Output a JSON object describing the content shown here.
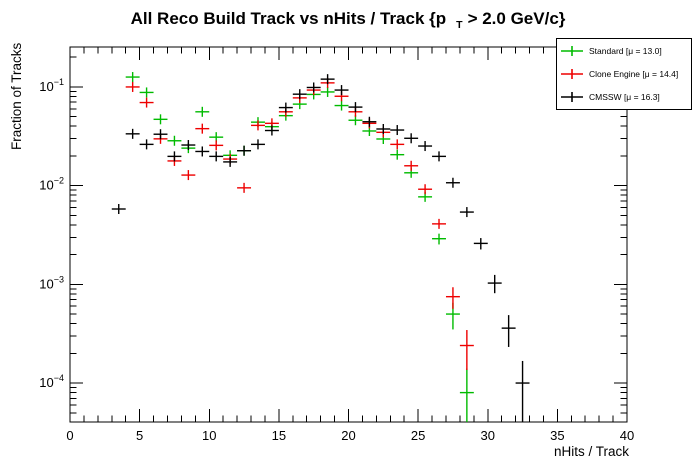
{
  "title": {
    "prefix": "All Reco Build Track vs nHits / Track {p",
    "subscript": "T",
    "suffix": "> 2.0 GeV/c}"
  },
  "chart_data": {
    "type": "scatter",
    "title": "All Reco Build Track vs nHits / Track {p_T > 2.0 GeV/c}",
    "xlabel": "nHits / Track",
    "ylabel": "Fraction of Tracks",
    "xlim": [
      0,
      40
    ],
    "ylim": [
      4.03e-05,
      0.254
    ],
    "yscale": "log",
    "grid": false,
    "legend_position": "top-right",
    "bin_width": 1,
    "x_minor_step": 1,
    "x_major_ticks": [
      0,
      5,
      10,
      15,
      20,
      25,
      30,
      35,
      40
    ],
    "x_tick_labels": [
      "0",
      "5",
      "10",
      "15",
      "20",
      "25",
      "30",
      "35",
      "40"
    ],
    "y_decades": [
      -1,
      -2,
      -3,
      -4
    ],
    "y_tick_labels": [
      "10^-1",
      "10^-2",
      "10^-3",
      "10^-4"
    ],
    "err_events": 22000,
    "series": [
      {
        "name": "Standard",
        "legend_label": "Standard  [μ = 13.0]",
        "mu": 13.0,
        "color": "#00bb00",
        "points": [
          [
            4.5,
            0.126
          ],
          [
            5.5,
            0.088
          ],
          [
            6.5,
            0.047
          ],
          [
            7.5,
            0.0285
          ],
          [
            8.5,
            0.024
          ],
          [
            9.5,
            0.056
          ],
          [
            10.5,
            0.031
          ],
          [
            11.5,
            0.0203
          ],
          [
            12.5,
            0.0226
          ],
          [
            13.5,
            0.044
          ],
          [
            14.5,
            0.0396
          ],
          [
            15.5,
            0.0512
          ],
          [
            16.5,
            0.067
          ],
          [
            17.5,
            0.084
          ],
          [
            18.5,
            0.089
          ],
          [
            19.5,
            0.0648
          ],
          [
            20.5,
            0.046
          ],
          [
            21.5,
            0.0358
          ],
          [
            22.5,
            0.0297
          ],
          [
            23.5,
            0.0206
          ],
          [
            24.5,
            0.0135
          ],
          [
            25.5,
            0.0077
          ],
          [
            26.5,
            0.0029
          ],
          [
            27.5,
            0.0005
          ],
          [
            28.5,
            8e-05
          ]
        ]
      },
      {
        "name": "Clone Engine",
        "legend_label": "Clone Engine  [μ = 14.4]",
        "mu": 14.4,
        "color": "#ee0000",
        "points": [
          [
            4.5,
            0.1
          ],
          [
            5.5,
            0.0695
          ],
          [
            6.5,
            0.0298
          ],
          [
            7.5,
            0.0178
          ],
          [
            8.5,
            0.0128
          ],
          [
            9.5,
            0.0378
          ],
          [
            10.5,
            0.0256
          ],
          [
            11.5,
            0.0186
          ],
          [
            12.5,
            0.0095
          ],
          [
            13.5,
            0.0408
          ],
          [
            14.5,
            0.0428
          ],
          [
            15.5,
            0.056
          ],
          [
            16.5,
            0.0775
          ],
          [
            17.5,
            0.093
          ],
          [
            18.5,
            0.11
          ],
          [
            19.5,
            0.0805
          ],
          [
            20.5,
            0.056
          ],
          [
            21.5,
            0.0428
          ],
          [
            22.5,
            0.0347
          ],
          [
            23.5,
            0.0262
          ],
          [
            24.5,
            0.0159
          ],
          [
            25.5,
            0.0092
          ],
          [
            26.5,
            0.0041
          ],
          [
            27.5,
            0.00075
          ],
          [
            28.5,
            0.00024
          ]
        ]
      },
      {
        "name": "CMSSW",
        "legend_label": "CMSSW  [μ = 16.3]",
        "mu": 16.3,
        "color": "#000000",
        "points": [
          [
            3.5,
            0.0058
          ],
          [
            4.5,
            0.0335
          ],
          [
            5.5,
            0.0262
          ],
          [
            6.5,
            0.0332
          ],
          [
            7.5,
            0.0198
          ],
          [
            8.5,
            0.0258
          ],
          [
            9.5,
            0.0222
          ],
          [
            10.5,
            0.0198
          ],
          [
            11.5,
            0.0174
          ],
          [
            12.5,
            0.0226
          ],
          [
            13.5,
            0.0262
          ],
          [
            14.5,
            0.0362
          ],
          [
            15.5,
            0.0618
          ],
          [
            16.5,
            0.0845
          ],
          [
            17.5,
            0.0988
          ],
          [
            18.5,
            0.12
          ],
          [
            19.5,
            0.093
          ],
          [
            20.5,
            0.0625
          ],
          [
            21.5,
            0.0444
          ],
          [
            22.5,
            0.0375
          ],
          [
            23.5,
            0.0366
          ],
          [
            24.5,
            0.0302
          ],
          [
            25.5,
            0.0252
          ],
          [
            26.5,
            0.0198
          ],
          [
            27.5,
            0.0107
          ],
          [
            28.5,
            0.0054
          ],
          [
            29.5,
            0.0026
          ],
          [
            30.5,
            0.00103
          ],
          [
            31.5,
            0.00036
          ],
          [
            32.5,
            0.0001
          ]
        ]
      }
    ]
  },
  "colors": {
    "background": "#ffffff",
    "axis": "#000000",
    "standard": "#00bb00",
    "clone_engine": "#ee0000",
    "cmssw": "#000000"
  }
}
